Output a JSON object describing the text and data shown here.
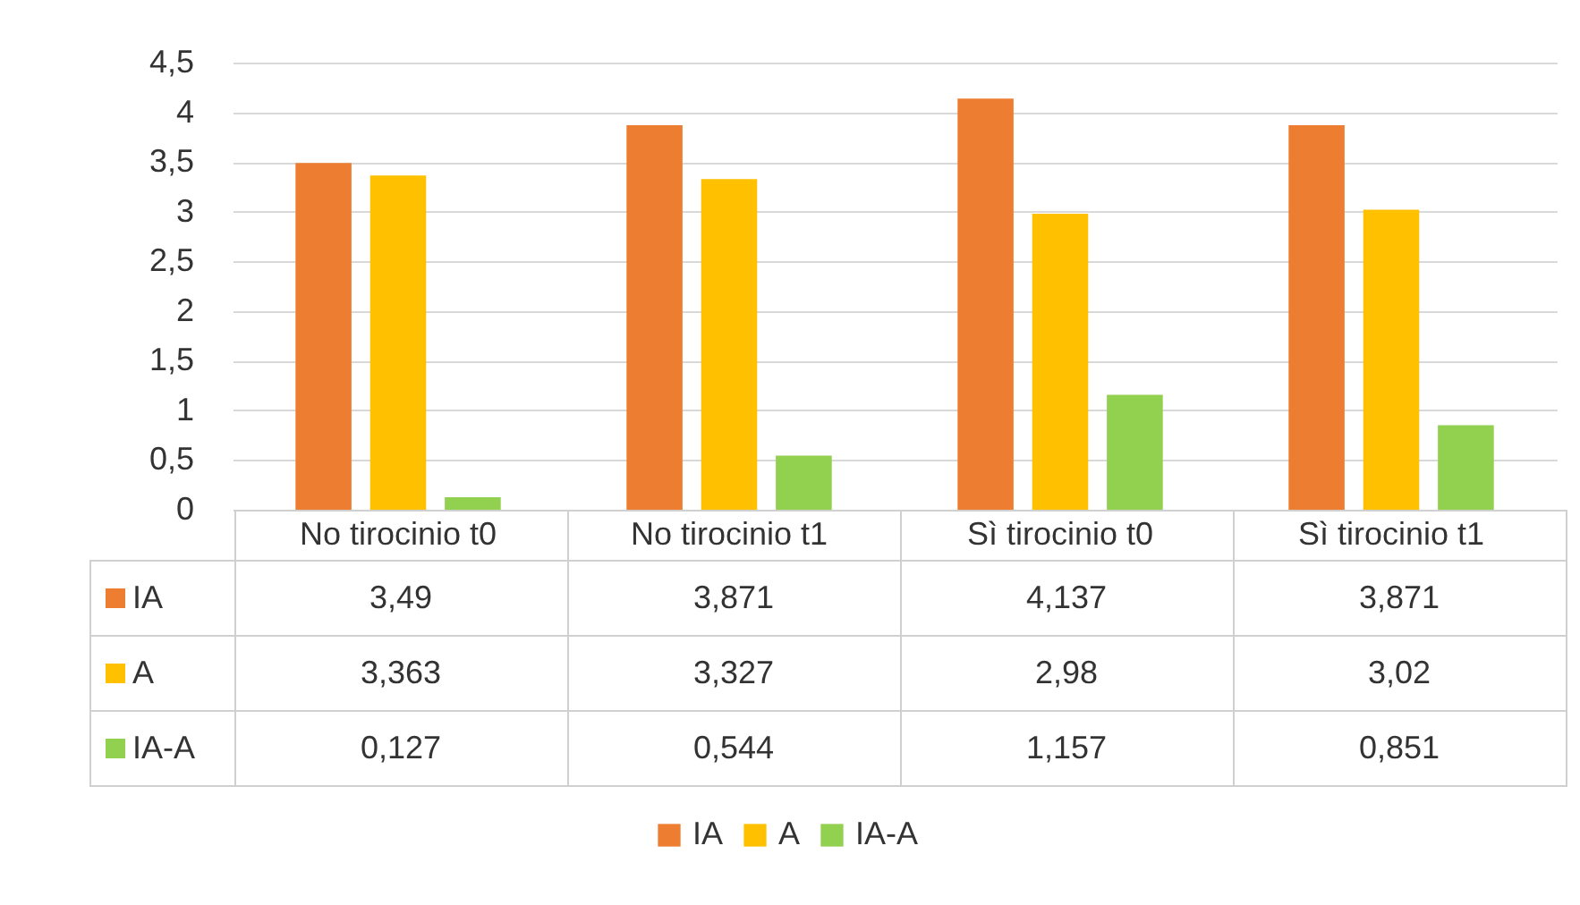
{
  "chart_data": {
    "type": "bar",
    "categories": [
      "No tirocinio t0",
      "No tirocinio t1",
      "Sì tirocinio t0",
      "Sì tirocinio t1"
    ],
    "series": [
      {
        "name": "IA",
        "color": "#ed7d31",
        "values": [
          3.49,
          3.871,
          4.137,
          3.871
        ],
        "value_labels": [
          "3,49",
          "3,871",
          "4,137",
          "3,871"
        ]
      },
      {
        "name": "A",
        "color": "#ffc000",
        "values": [
          3.363,
          3.327,
          2.98,
          3.02
        ],
        "value_labels": [
          "3,363",
          "3,327",
          "2,98",
          "3,02"
        ]
      },
      {
        "name": "IA-A",
        "color": "#92d050",
        "values": [
          0.127,
          0.544,
          1.157,
          0.851
        ],
        "value_labels": [
          "0,127",
          "0,544",
          "1,157",
          "0,851"
        ]
      }
    ],
    "ylim": [
      0,
      4.5
    ],
    "yticks": [
      "0",
      {
        "value": 0.5,
        "label": "0,5"
      },
      1,
      {
        "value": 1.5,
        "label": "1,5"
      },
      2,
      {
        "value": 2.5,
        "label": "2,5"
      },
      3,
      {
        "value": 3.5,
        "label": "3,5"
      },
      4,
      {
        "value": 4.5,
        "label": "4,5"
      }
    ],
    "grid": "y",
    "legend": "bottom"
  }
}
